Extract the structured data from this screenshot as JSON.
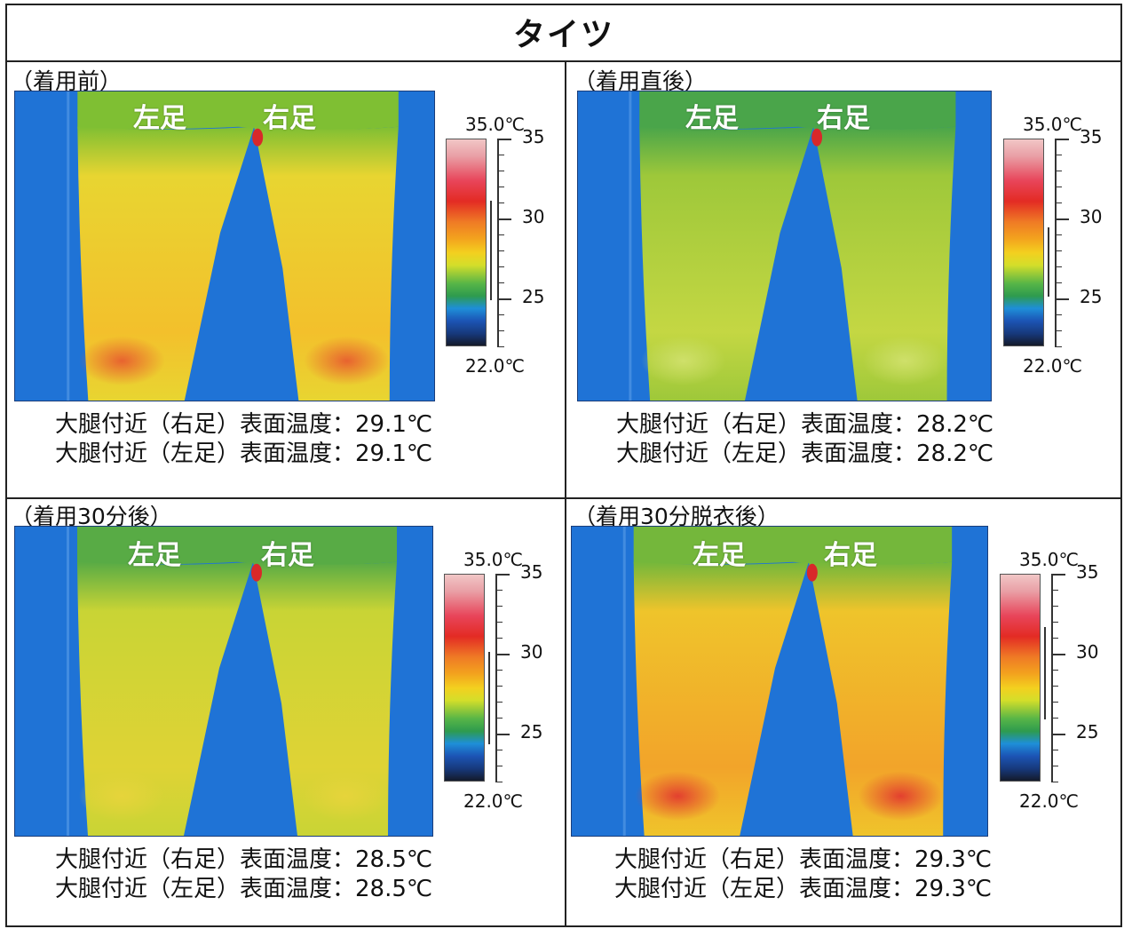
{
  "title": "タイツ",
  "legend": {
    "left": "左足",
    "right": "右足"
  },
  "scale": {
    "max_label": "35.0℃",
    "min_label": "22.0℃",
    "ticks": [
      "35",
      "30",
      "25"
    ]
  },
  "colors": {
    "background_blue": "#1f73d6",
    "border": "#222222"
  },
  "panels": [
    {
      "label": "（着用前）",
      "right_line": "大腿付近（右足）表面温度：29.1℃",
      "left_line": "大腿付近（左足）表面温度：29.1℃",
      "right_temp": 29.1,
      "left_temp": 29.1
    },
    {
      "label": "（着用直後）",
      "right_line": "大腿付近（右足）表面温度：28.2℃",
      "left_line": "大腿付近（左足）表面温度：28.2℃",
      "right_temp": 28.2,
      "left_temp": 28.2
    },
    {
      "label": "（着用30分後）",
      "right_line": "大腿付近（右足）表面温度：28.5℃",
      "left_line": "大腿付近（左足）表面温度：28.5℃",
      "right_temp": 28.5,
      "left_temp": 28.5
    },
    {
      "label": "（着用30分脱衣後）",
      "right_line": "大腿付近（右足）表面温度：29.3℃",
      "left_line": "大腿付近（左足）表面温度：29.3℃",
      "right_temp": 29.3,
      "left_temp": 29.3
    }
  ]
}
